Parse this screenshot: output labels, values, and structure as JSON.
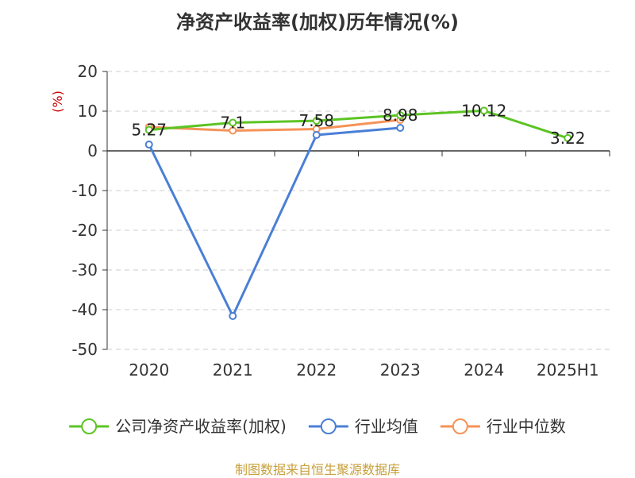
{
  "chart_data": {
    "type": "line",
    "title": "净资产收益率(加权)历年情况(%)",
    "ylabel": "(%)",
    "xlabel": "",
    "categories": [
      "2020",
      "2021",
      "2022",
      "2023",
      "2024",
      "2025H1"
    ],
    "ylim": [
      -50,
      20
    ],
    "yticks": [
      20,
      10,
      0,
      -10,
      -20,
      -30,
      -40,
      -50
    ],
    "grid": true,
    "legend_position": "bottom",
    "series": [
      {
        "name": "公司净资产收益率(加权)",
        "color": "#5cc424",
        "values": [
          5.27,
          7.1,
          7.58,
          8.98,
          10.12,
          3.22
        ],
        "labels": [
          "5.27",
          "7.1",
          "7.58",
          "8.98",
          "10.12",
          "3.22"
        ]
      },
      {
        "name": "行业均值",
        "color": "#4a7fd6",
        "values": [
          1.6,
          -41.6,
          4.0,
          5.8,
          null,
          null
        ]
      },
      {
        "name": "行业中位数",
        "color": "#f59358",
        "values": [
          6.0,
          5.1,
          5.5,
          7.8,
          null,
          null
        ]
      }
    ]
  },
  "source": "制图数据来自恒生聚源数据库"
}
